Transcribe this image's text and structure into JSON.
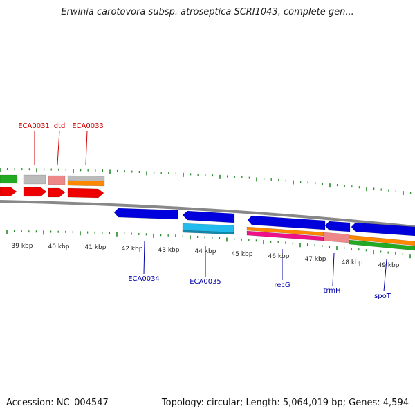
{
  "title": "Erwinia carotovora subsp. atroseptica SCRI1043, complete gen...",
  "footer": {
    "accession": "Accession: NC_004547",
    "summary": "Topology: circular; Length: 5,064,019 bp; Genes: 4,594"
  },
  "colors": {
    "tick": "#2a8a2a",
    "backbone": "#888888",
    "label_top": "#cc0000",
    "label_bottom": "#0000aa",
    "gene_red": "#ee0000",
    "gene_blue": "#0000dd",
    "gene_cyan": "#22bbee",
    "feature_green": "#22aa22",
    "feature_gray": "#bbbbbb",
    "feature_pink": "#ee8888",
    "feature_orange": "#ff8800",
    "feature_magenta": "#ee1188"
  },
  "kbp_labels": [
    "39 kbp",
    "40 kbp",
    "41 kbp",
    "42 kbp",
    "43 kbp",
    "44 kbp",
    "45 kbp",
    "46 kbp",
    "47 kbp",
    "48 kbp",
    "49 kbp"
  ],
  "top_gene_labels": [
    "ECA0031",
    "dtd",
    "ECA0033"
  ],
  "bottom_gene_labels": [
    "ECA0034",
    "ECA0035",
    "recG",
    "trmH",
    "spoT"
  ]
}
